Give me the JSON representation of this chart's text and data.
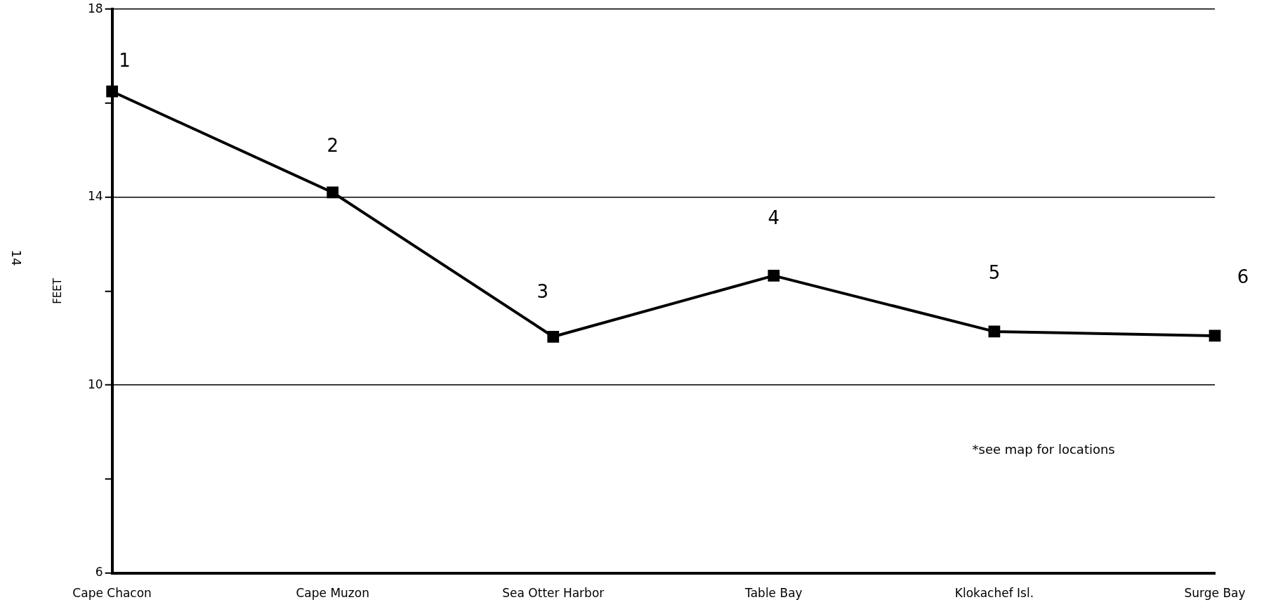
{
  "chart_data": {
    "type": "line",
    "ylabel": "FEET",
    "categories": [
      "Cape Chacon",
      "Cape Muzon",
      "Sea Otter Harbor",
      "Table Bay",
      "Klokachef Isl.",
      "Surge Bay"
    ],
    "series": [
      {
        "color": "#000000",
        "values": [
          16.25,
          14.1,
          11.03,
          12.33,
          11.14,
          11.05
        ]
      }
    ],
    "ylim": [
      6,
      18
    ],
    "yticks": [
      6,
      {
        "value": 8,
        "label": null
      },
      10,
      {
        "value": 12,
        "label": null
      },
      14,
      {
        "value": 16,
        "label": null
      },
      18
    ],
    "grid": "y",
    "legend": false,
    "marker": "square",
    "line_style": "solid",
    "annotations": [
      "1",
      "2",
      "3",
      "4",
      "5",
      "6",
      "14",
      "*see map for locations"
    ]
  }
}
